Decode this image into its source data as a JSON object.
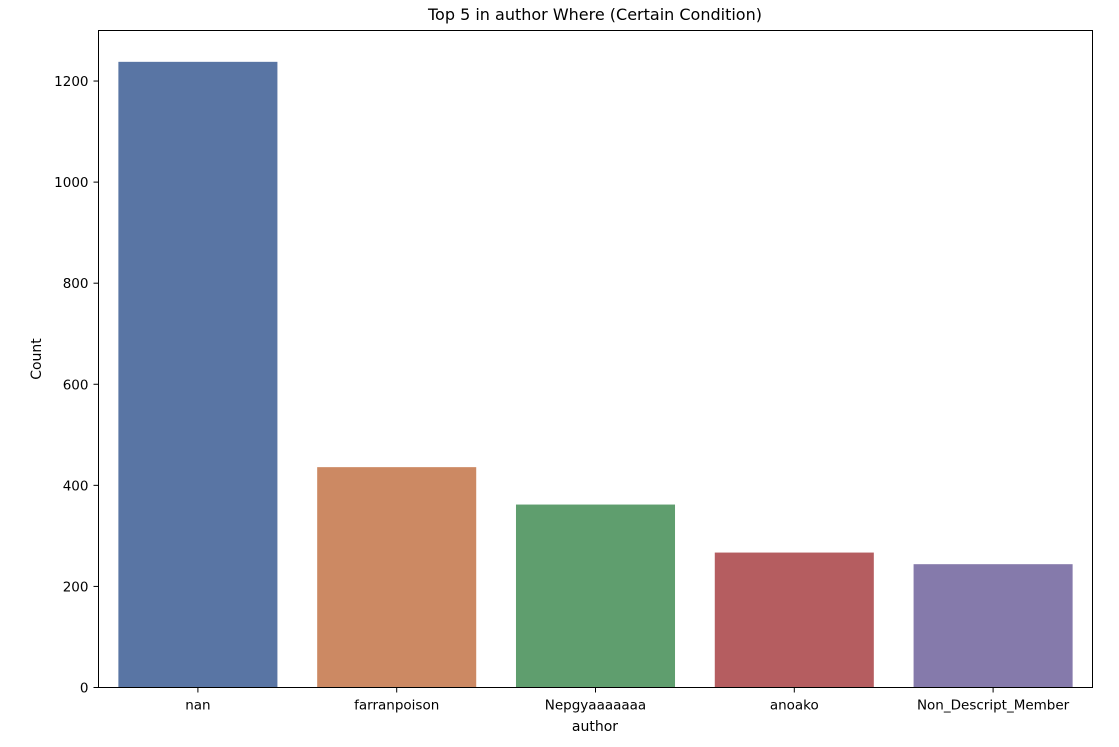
{
  "chart_data": {
    "type": "bar",
    "title": "Top 5 in author Where (Certain Condition)",
    "xlabel": "author",
    "ylabel": "Count",
    "categories": [
      "nan",
      "farranpoison",
      "Nepgyaaaaaaa",
      "anoako",
      "Non_Descript_Member"
    ],
    "values": [
      1238,
      436,
      362,
      267,
      244
    ],
    "colors": [
      "#5975a4",
      "#cc8963",
      "#5f9e6e",
      "#b55d60",
      "#857aab"
    ],
    "ylim": [
      0,
      1300
    ],
    "yticks": [
      0,
      200,
      400,
      600,
      800,
      1000,
      1200
    ],
    "grid": false,
    "legend": "none"
  }
}
